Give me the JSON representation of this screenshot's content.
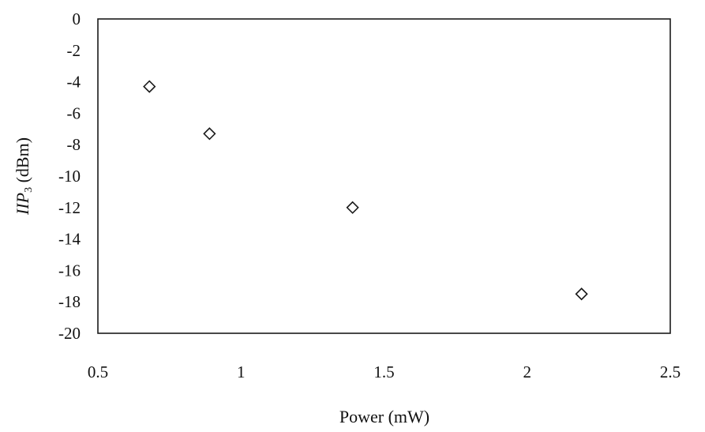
{
  "chart_data": {
    "type": "scatter",
    "title": "",
    "xlabel": "Power (mW)",
    "ylabel_parts": {
      "main": "IIP",
      "sub": "3",
      "unit": " (dBm)"
    },
    "xlim": [
      0.5,
      2.5
    ],
    "ylim": [
      -20,
      0
    ],
    "xticks": [
      "0.5",
      "1",
      "1.5",
      "2",
      "2.5"
    ],
    "xtick_values": [
      0.5,
      1,
      1.5,
      2,
      2.5
    ],
    "yticks": [
      "0",
      "-2",
      "-4",
      "-6",
      "-8",
      "-10",
      "-12",
      "-14",
      "-16",
      "-18",
      "-20"
    ],
    "ytick_values": [
      0,
      -2,
      -4,
      -6,
      -8,
      -10,
      -12,
      -14,
      -16,
      -18,
      -20
    ],
    "grid": false,
    "marker": "open-diamond",
    "series": [
      {
        "points": [
          {
            "x": 0.68,
            "y": -4.3
          },
          {
            "x": 0.89,
            "y": -7.3
          },
          {
            "x": 1.39,
            "y": -12.0
          },
          {
            "x": 2.19,
            "y": -17.5
          }
        ]
      }
    ]
  }
}
